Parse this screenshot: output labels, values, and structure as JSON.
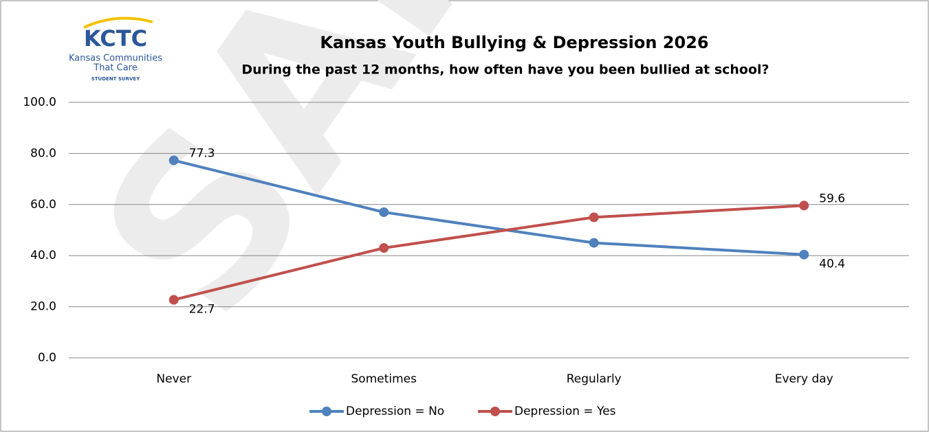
{
  "logo": {
    "mark": "KCTC",
    "line1": "Kansas Communities",
    "line2": "That Care",
    "line3": "STUDENT SURVEY"
  },
  "watermark": "SAMPLE",
  "chart_data": {
    "type": "line",
    "title": "Kansas Youth Bullying & Depression 2026",
    "subtitle": "During the past 12 months, how often have you been bullied at school?",
    "categories": [
      "Never",
      "Sometimes",
      "Regularly",
      "Every day"
    ],
    "series": [
      {
        "name": "Depression = No",
        "color": "#4f81bd",
        "values": [
          77.3,
          57.0,
          45.0,
          40.4
        ]
      },
      {
        "name": "Depression = Yes",
        "color": "#c0504d",
        "values": [
          22.7,
          43.0,
          55.0,
          59.6
        ]
      }
    ],
    "ylim": [
      0,
      100
    ],
    "yticks": [
      {
        "value": 0,
        "label": "0.0"
      },
      {
        "value": 20,
        "label": "20.0"
      },
      {
        "value": 40,
        "label": "40.0"
      },
      {
        "value": 60,
        "label": "60.0"
      },
      {
        "value": 80,
        "label": "80.0"
      },
      {
        "value": 100,
        "label": "100.0"
      }
    ],
    "grid": true,
    "legend": "bottom"
  }
}
